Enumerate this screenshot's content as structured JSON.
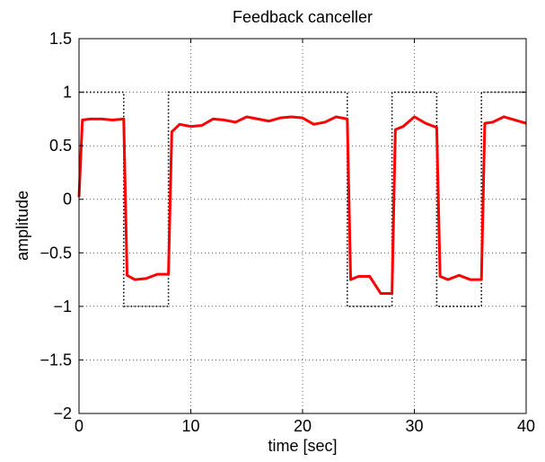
{
  "chart_data": {
    "type": "line",
    "title": "Feedback canceller",
    "xlabel": "time [sec]",
    "ylabel": "amplitude",
    "xlim": [
      0,
      40
    ],
    "ylim": [
      -2,
      1.5
    ],
    "xticks": [
      0,
      10,
      20,
      30,
      40
    ],
    "xtick_labels": [
      "0",
      "10",
      "20",
      "30",
      "40"
    ],
    "yticks": [
      -2,
      -1.5,
      -1,
      -0.5,
      0,
      0.5,
      1,
      1.5
    ],
    "ytick_labels": [
      "−2",
      "−1.5",
      "−1",
      "−0.5",
      "0",
      "0.5",
      "1",
      "1.5"
    ],
    "grid": true,
    "colors": {
      "reference": "#000000",
      "output": "#ff0000",
      "grid": "#000000"
    },
    "series": [
      {
        "style": "dotted-step",
        "x": [
          0,
          0,
          4,
          4,
          8,
          8,
          24,
          24,
          28,
          28,
          32,
          32,
          36,
          36,
          40
        ],
        "y": [
          1,
          1,
          1,
          -1,
          -1,
          1,
          1,
          -1,
          -1,
          1,
          1,
          -1,
          -1,
          1,
          1
        ]
      },
      {
        "style": "solid-step",
        "x": [
          0,
          0.3,
          1,
          2,
          3,
          4,
          4.3,
          5,
          6,
          7,
          8,
          8.3,
          9,
          10,
          11,
          12,
          13,
          14,
          15,
          16,
          17,
          18,
          19,
          20,
          21,
          22,
          23,
          24,
          24.3,
          25,
          26,
          27,
          28,
          28.3,
          29,
          30,
          31,
          32,
          32.3,
          33,
          34,
          35,
          36,
          36.3,
          37,
          38,
          39,
          40
        ],
        "y": [
          0.02,
          0.74,
          0.75,
          0.75,
          0.74,
          0.75,
          -0.71,
          -0.75,
          -0.74,
          -0.7,
          -0.7,
          0.63,
          0.7,
          0.68,
          0.69,
          0.75,
          0.74,
          0.72,
          0.77,
          0.75,
          0.73,
          0.76,
          0.77,
          0.76,
          0.7,
          0.72,
          0.77,
          0.75,
          -0.75,
          -0.72,
          -0.72,
          -0.88,
          -0.88,
          0.65,
          0.68,
          0.77,
          0.71,
          0.67,
          -0.72,
          -0.75,
          -0.71,
          -0.75,
          -0.75,
          0.71,
          0.72,
          0.77,
          0.74,
          0.71
        ]
      }
    ]
  }
}
